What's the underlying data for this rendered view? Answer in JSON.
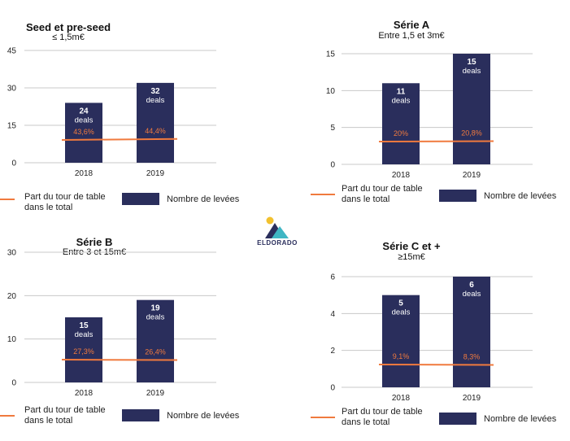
{
  "colors": {
    "bar": "#2a2e5c",
    "line": "#f07a3e",
    "grid": "#c8c8c8",
    "axis_text": "#222222"
  },
  "logo": {
    "text": "ELDORADO",
    "icon": "mountain-sun-logo"
  },
  "chart_data": [
    {
      "type": "bar",
      "title": "Seed et pre-seed",
      "subtitle": "≤ 1,5m€",
      "categories": [
        "2018",
        "2019"
      ],
      "ylim": [
        0,
        45
      ],
      "yticks": [
        "0",
        "15",
        "30",
        "45"
      ],
      "grid": true,
      "series": [
        {
          "name": "Nombre de levées",
          "type": "bar",
          "values": [
            24,
            32
          ],
          "data_labels": [
            [
              "24",
              "deals"
            ],
            [
              "32",
              "deals"
            ]
          ]
        },
        {
          "name": "Part du tour de table dans le total",
          "type": "line",
          "values": [
            43.6,
            44.4
          ],
          "data_labels": [
            "43,6%",
            "44,4%"
          ]
        }
      ],
      "legend": {
        "line_label": "Part du tour de table dans le total",
        "line_label_lines": [
          "Part du tour de table",
          "dans le total"
        ],
        "bar_label": "Nombre de levées",
        "position": "bottom"
      }
    },
    {
      "type": "bar",
      "title": "Série A",
      "subtitle": "Entre 1,5 et 3m€",
      "categories": [
        "2018",
        "2019"
      ],
      "ylim": [
        0,
        15
      ],
      "yticks": [
        "0",
        "5",
        "10",
        "15"
      ],
      "grid": true,
      "series": [
        {
          "name": "Nombre de levées",
          "type": "bar",
          "values": [
            11,
            15
          ],
          "data_labels": [
            [
              "11",
              "deals"
            ],
            [
              "15",
              "deals"
            ]
          ]
        },
        {
          "name": "Part du tour de table dans le total",
          "type": "line",
          "values": [
            20,
            20.8
          ],
          "data_labels": [
            "20%",
            "20,8%"
          ]
        }
      ],
      "legend": {
        "line_label": "Part du tour de table dans le total",
        "line_label_lines": [
          "Part du tour de table",
          "dans le total"
        ],
        "bar_label": "Nombre de levées",
        "position": "bottom"
      }
    },
    {
      "type": "bar",
      "title": "Série B",
      "subtitle": "Entre 3 et 15m€",
      "categories": [
        "2018",
        "2019"
      ],
      "ylim": [
        0,
        30
      ],
      "yticks": [
        "0",
        "10",
        "20",
        "30"
      ],
      "grid": true,
      "series": [
        {
          "name": "Nombre de levées",
          "type": "bar",
          "values": [
            15,
            19
          ],
          "data_labels": [
            [
              "15",
              "deals"
            ],
            [
              "19",
              "deals"
            ]
          ]
        },
        {
          "name": "Part du tour de table dans le total",
          "type": "line",
          "values": [
            27.3,
            26.4
          ],
          "data_labels": [
            "27,3%",
            "26,4%"
          ]
        }
      ],
      "legend": {
        "line_label": "Part du tour de table dans le total",
        "line_label_lines": [
          "Part du tour de table",
          "dans le total"
        ],
        "bar_label": "Nombre de levées",
        "position": "bottom"
      }
    },
    {
      "type": "bar",
      "title": "Série C et +",
      "subtitle": "≥15m€",
      "categories": [
        "2018",
        "2019"
      ],
      "ylim": [
        0,
        6
      ],
      "yticks": [
        "0",
        "2",
        "4",
        "6"
      ],
      "grid": true,
      "series": [
        {
          "name": "Nombre de levées",
          "type": "bar",
          "values": [
            5,
            6
          ],
          "data_labels": [
            [
              "5",
              "deals"
            ],
            [
              "6",
              "deals"
            ]
          ]
        },
        {
          "name": "Part du tour de table dans le total",
          "type": "line",
          "values": [
            9.1,
            8.3
          ],
          "data_labels": [
            "9,1%",
            "8,3%"
          ]
        }
      ],
      "legend": {
        "line_label": "Part du tour de table dans le total",
        "line_label_lines": [
          "Part du tour de table",
          "dans le total"
        ],
        "bar_label": "Nombre de levées",
        "position": "bottom"
      }
    }
  ]
}
